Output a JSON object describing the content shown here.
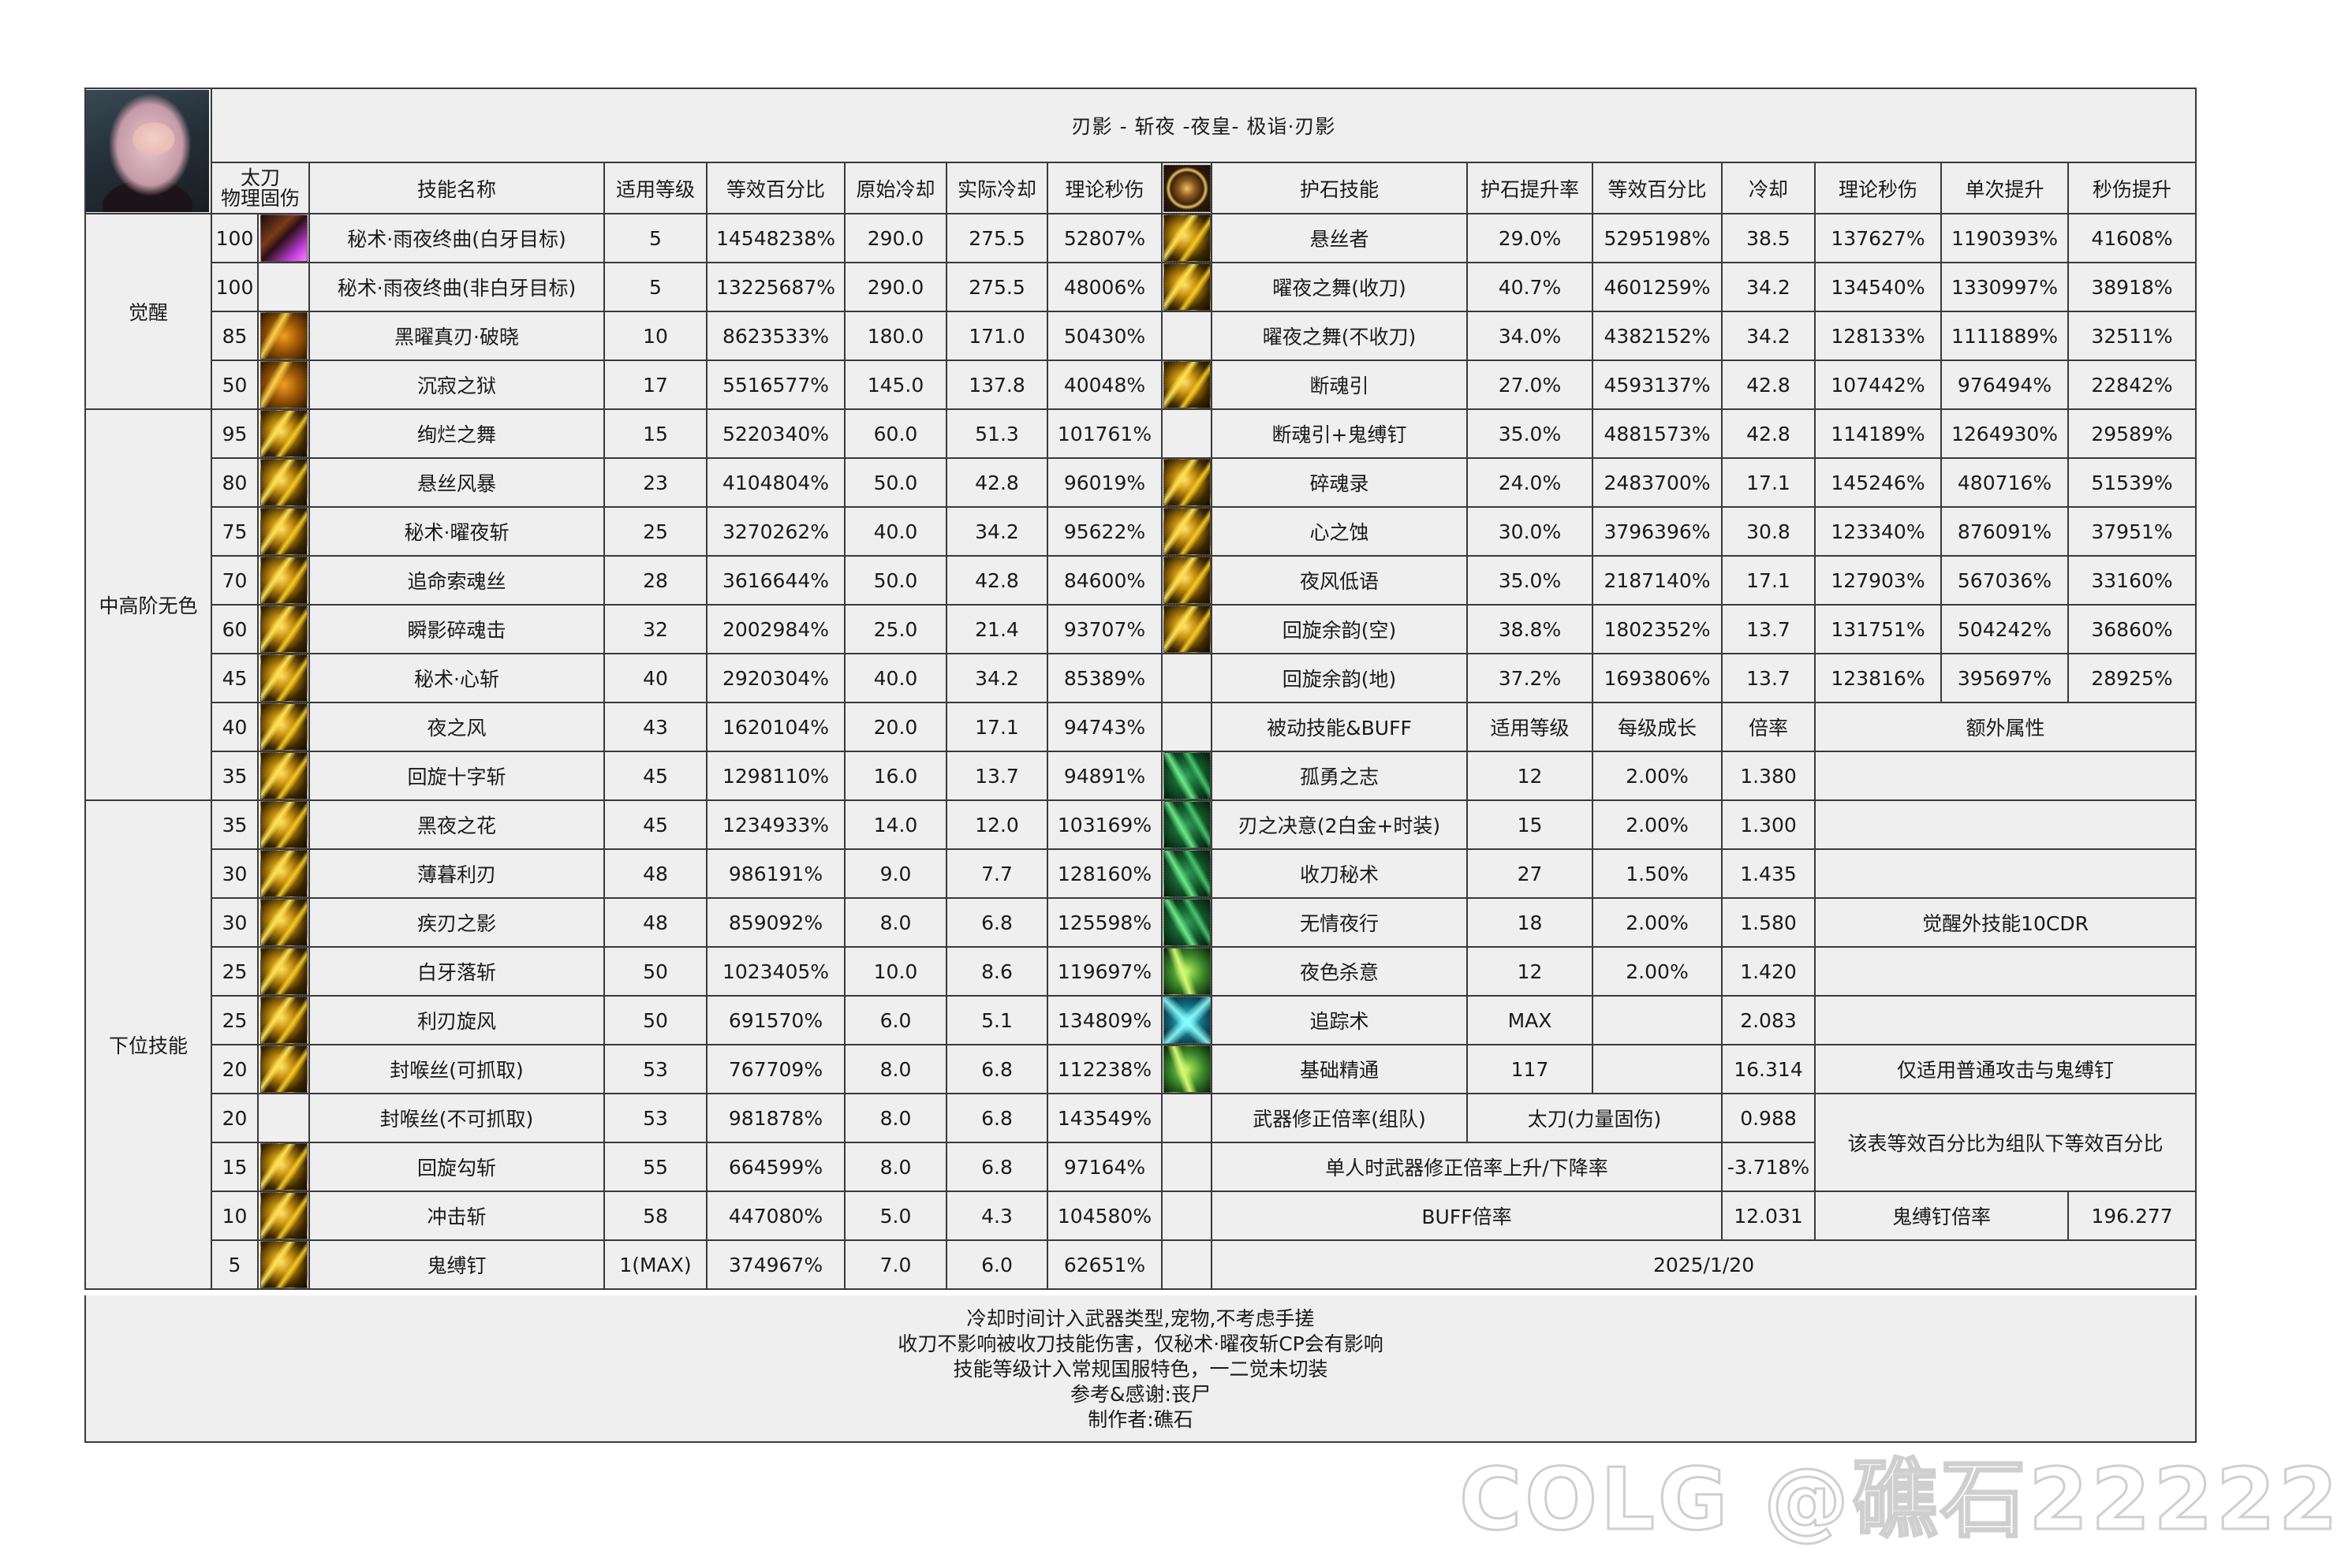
{
  "title": "刃影 - 斩夜 -夜皇- 极诣·刃影",
  "headers": {
    "weapon_line1": "太刀",
    "weapon_line2": "物理固伤",
    "skill_name": "技能名称",
    "level": "适用等级",
    "equiv_pct": "等效百分比",
    "orig_cd": "原始冷却",
    "real_cd": "实际冷却",
    "dps": "理论秒伤",
    "talisman_skill": "护石技能",
    "talisman_rate": "护石提升率",
    "talisman_pct": "等效百分比",
    "talisman_cd": "冷却",
    "talisman_dps": "理论秒伤",
    "single_gain": "单次提升",
    "dps_gain": "秒伤提升"
  },
  "categories": [
    {
      "label": "觉醒",
      "rows": 4
    },
    {
      "label": "中高阶无色",
      "rows": 8
    },
    {
      "label": "下位技能",
      "rows": 10
    }
  ],
  "skills": [
    {
      "lv": "100",
      "icon": "purple",
      "name": "秘术·雨夜终曲(白牙目标)",
      "level": "5",
      "pct": "14548238%",
      "cd0": "290.0",
      "cd1": "275.5",
      "dps": "52807%"
    },
    {
      "lv": "100",
      "icon": null,
      "name": "秘术·雨夜终曲(非白牙目标)",
      "level": "5",
      "pct": "13225687%",
      "cd0": "290.0",
      "cd1": "275.5",
      "dps": "48006%"
    },
    {
      "lv": "85",
      "icon": "orange",
      "name": "黑曜真刃·破晓",
      "level": "10",
      "pct": "8623533%",
      "cd0": "180.0",
      "cd1": "171.0",
      "dps": "50430%"
    },
    {
      "lv": "50",
      "icon": "orange",
      "name": "沉寂之狱",
      "level": "17",
      "pct": "5516577%",
      "cd0": "145.0",
      "cd1": "137.8",
      "dps": "40048%"
    },
    {
      "lv": "95",
      "icon": "gold",
      "name": "绚烂之舞",
      "level": "15",
      "pct": "5220340%",
      "cd0": "60.0",
      "cd1": "51.3",
      "dps": "101761%"
    },
    {
      "lv": "80",
      "icon": "gold",
      "name": "悬丝风暴",
      "level": "23",
      "pct": "4104804%",
      "cd0": "50.0",
      "cd1": "42.8",
      "dps": "96019%"
    },
    {
      "lv": "75",
      "icon": "gold",
      "name": "秘术·曜夜斩",
      "level": "25",
      "pct": "3270262%",
      "cd0": "40.0",
      "cd1": "34.2",
      "dps": "95622%"
    },
    {
      "lv": "70",
      "icon": "gold",
      "name": "追命索魂丝",
      "level": "28",
      "pct": "3616644%",
      "cd0": "50.0",
      "cd1": "42.8",
      "dps": "84600%"
    },
    {
      "lv": "60",
      "icon": "gold",
      "name": "瞬影碎魂击",
      "level": "32",
      "pct": "2002984%",
      "cd0": "25.0",
      "cd1": "21.4",
      "dps": "93707%"
    },
    {
      "lv": "45",
      "icon": "gold",
      "name": "秘术·心斩",
      "level": "40",
      "pct": "2920304%",
      "cd0": "40.0",
      "cd1": "34.2",
      "dps": "85389%"
    },
    {
      "lv": "40",
      "icon": "gold",
      "name": "夜之风",
      "level": "43",
      "pct": "1620104%",
      "cd0": "20.0",
      "cd1": "17.1",
      "dps": "94743%"
    },
    {
      "lv": "35",
      "icon": "gold",
      "name": "回旋十字斩",
      "level": "45",
      "pct": "1298110%",
      "cd0": "16.0",
      "cd1": "13.7",
      "dps": "94891%"
    },
    {
      "lv": "35",
      "icon": "gold",
      "name": "黑夜之花",
      "level": "45",
      "pct": "1234933%",
      "cd0": "14.0",
      "cd1": "12.0",
      "dps": "103169%"
    },
    {
      "lv": "30",
      "icon": "gold",
      "name": "薄暮利刃",
      "level": "48",
      "pct": "986191%",
      "cd0": "9.0",
      "cd1": "7.7",
      "dps": "128160%"
    },
    {
      "lv": "30",
      "icon": "gold",
      "name": "疾刃之影",
      "level": "48",
      "pct": "859092%",
      "cd0": "8.0",
      "cd1": "6.8",
      "dps": "125598%"
    },
    {
      "lv": "25",
      "icon": "gold",
      "name": "白牙落斩",
      "level": "50",
      "pct": "1023405%",
      "cd0": "10.0",
      "cd1": "8.6",
      "dps": "119697%"
    },
    {
      "lv": "25",
      "icon": "gold",
      "name": "利刃旋风",
      "level": "50",
      "pct": "691570%",
      "cd0": "6.0",
      "cd1": "5.1",
      "dps": "134809%"
    },
    {
      "lv": "20",
      "icon": "gold",
      "name": "封喉丝(可抓取)",
      "level": "53",
      "pct": "767709%",
      "cd0": "8.0",
      "cd1": "6.8",
      "dps": "112238%"
    },
    {
      "lv": "20",
      "icon": null,
      "name": "封喉丝(不可抓取)",
      "level": "53",
      "pct": "981878%",
      "cd0": "8.0",
      "cd1": "6.8",
      "dps": "143549%"
    },
    {
      "lv": "15",
      "icon": "gold",
      "name": "回旋勾斩",
      "level": "55",
      "pct": "664599%",
      "cd0": "8.0",
      "cd1": "6.8",
      "dps": "97164%"
    },
    {
      "lv": "10",
      "icon": "gold",
      "name": "冲击斩",
      "level": "58",
      "pct": "447080%",
      "cd0": "5.0",
      "cd1": "4.3",
      "dps": "104580%"
    },
    {
      "lv": "5",
      "icon": "gold",
      "name": "鬼缚钉",
      "level": "1(MAX)",
      "pct": "374967%",
      "cd0": "7.0",
      "cd1": "6.0",
      "dps": "62651%"
    }
  ],
  "talismans": [
    {
      "icon": "gold",
      "name": "悬丝者",
      "rate": "29.0%",
      "pct": "5295198%",
      "cd": "38.5",
      "dps": "137627%",
      "single": "1190393%",
      "gain": "41608%"
    },
    {
      "icon": "gold",
      "name": "曜夜之舞(收刀)",
      "rate": "40.7%",
      "pct": "4601259%",
      "cd": "34.2",
      "dps": "134540%",
      "single": "1330997%",
      "gain": "38918%"
    },
    {
      "icon": null,
      "name": "曜夜之舞(不收刀)",
      "rate": "34.0%",
      "pct": "4382152%",
      "cd": "34.2",
      "dps": "128133%",
      "single": "1111889%",
      "gain": "32511%"
    },
    {
      "icon": "gold",
      "name": "断魂引",
      "rate": "27.0%",
      "pct": "4593137%",
      "cd": "42.8",
      "dps": "107442%",
      "single": "976494%",
      "gain": "22842%"
    },
    {
      "icon": null,
      "name": "断魂引+鬼缚钉",
      "rate": "35.0%",
      "pct": "4881573%",
      "cd": "42.8",
      "dps": "114189%",
      "single": "1264930%",
      "gain": "29589%"
    },
    {
      "icon": "gold",
      "name": "碎魂录",
      "rate": "24.0%",
      "pct": "2483700%",
      "cd": "17.1",
      "dps": "145246%",
      "single": "480716%",
      "gain": "51539%"
    },
    {
      "icon": "gold",
      "name": "心之蚀",
      "rate": "30.0%",
      "pct": "3796396%",
      "cd": "30.8",
      "dps": "123340%",
      "single": "876091%",
      "gain": "37951%"
    },
    {
      "icon": "gold",
      "name": "夜风低语",
      "rate": "35.0%",
      "pct": "2187140%",
      "cd": "17.1",
      "dps": "127903%",
      "single": "567036%",
      "gain": "33160%"
    },
    {
      "icon": "gold",
      "name": "回旋余韵(空)",
      "rate": "38.8%",
      "pct": "1802352%",
      "cd": "13.7",
      "dps": "131751%",
      "single": "504242%",
      "gain": "36860%"
    },
    {
      "icon": null,
      "name": "回旋余韵(地)",
      "rate": "37.2%",
      "pct": "1693806%",
      "cd": "13.7",
      "dps": "123816%",
      "single": "395697%",
      "gain": "28925%"
    }
  ],
  "passive_header": {
    "name": "被动技能&BUFF",
    "level": "适用等级",
    "growth": "每级成长",
    "rate": "倍率",
    "extra": "额外属性"
  },
  "passives": [
    {
      "icon": "green",
      "name": "孤勇之志",
      "level": "12",
      "growth": "2.00%",
      "rate": "1.380",
      "extra": ""
    },
    {
      "icon": "green",
      "name": "刃之决意(2白金+时装)",
      "level": "15",
      "growth": "2.00%",
      "rate": "1.300",
      "extra": ""
    },
    {
      "icon": "green",
      "name": "收刀秘术",
      "level": "27",
      "growth": "1.50%",
      "rate": "1.435",
      "extra": ""
    },
    {
      "icon": "green",
      "name": "无情夜行",
      "level": "18",
      "growth": "2.00%",
      "rate": "1.580",
      "extra": "觉醒外技能10CDR"
    },
    {
      "icon": "lime",
      "name": "夜色杀意",
      "level": "12",
      "growth": "2.00%",
      "rate": "1.420",
      "extra": ""
    },
    {
      "icon": "cyan",
      "name": "追踪术",
      "level": "MAX",
      "growth": "",
      "rate": "2.083",
      "extra": ""
    },
    {
      "icon": "lime",
      "name": "基础精通",
      "level": "117",
      "growth": "",
      "rate": "16.314",
      "extra": "仅适用普通攻击与鬼缚钉"
    }
  ],
  "weapon": {
    "label": "武器修正倍率(组队)",
    "type": "太刀(力量固伤)",
    "value": "0.988",
    "note": "该表等效百分比为组队下等效百分比"
  },
  "solo": {
    "label": "单人时武器修正倍率上升/下降率",
    "value": "-3.718%"
  },
  "buff": {
    "label": "BUFF倍率",
    "value": "12.031",
    "nail_label": "鬼缚钉倍率",
    "nail_value": "196.277"
  },
  "date": "2025/1/20",
  "footer_notes": [
    "冷却时间计入武器类型,宠物,不考虑手搓",
    "收刀不影响被收刀技能伤害，仅秘术·曜夜斩CP会有影响",
    "技能等级计入常规国服特色，一二觉未切装",
    "参考&感谢:丧尸",
    "制作者:礁石"
  ],
  "watermark": "COLG @礁石22222"
}
